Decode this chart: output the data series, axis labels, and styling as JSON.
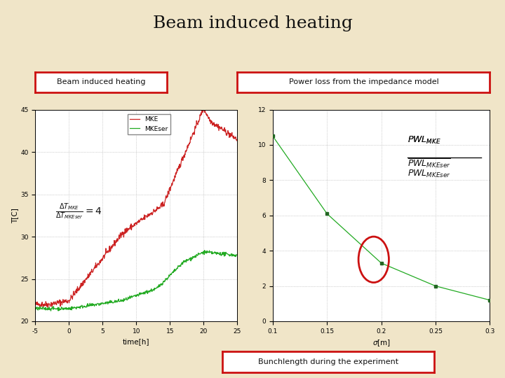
{
  "title": "Beam induced heating",
  "title_fontsize": 18,
  "bg_color": "#f0e5c8",
  "label1_text": "Beam induced heating",
  "label2_text": "Power loss from the impedance model",
  "label3_text": "Bunchlength during the experiment",
  "box_edge_color": "#cc1111",
  "box_face_color": "#ffffff",
  "left_plot": {
    "time_x_min": -5,
    "time_x_max": 25,
    "y_min": 20,
    "y_max": 45,
    "xlabel": "time[h]",
    "ylabel": "T[C]",
    "mke_color": "#cc2222",
    "mkeser_color": "#22aa22",
    "xticks": [
      -5,
      0,
      5,
      10,
      15,
      20,
      25
    ],
    "yticks": [
      20,
      25,
      30,
      35,
      40,
      45
    ]
  },
  "right_plot": {
    "sigma_points": [
      0.1,
      0.15,
      0.2,
      0.25,
      0.3
    ],
    "pwl_values": [
      10.5,
      6.1,
      3.3,
      2.0,
      1.2
    ],
    "x_min": 0.1,
    "x_max": 0.3,
    "y_min": 0,
    "y_max": 12,
    "line_color": "#22aa22",
    "marker_color": "#226622",
    "ellipse_color": "#cc1111",
    "arrow_color": "#7799bb",
    "xticks": [
      0.1,
      0.15,
      0.2,
      0.25,
      0.3
    ],
    "yticks": [
      0,
      2,
      4,
      6,
      8,
      10,
      12
    ]
  }
}
